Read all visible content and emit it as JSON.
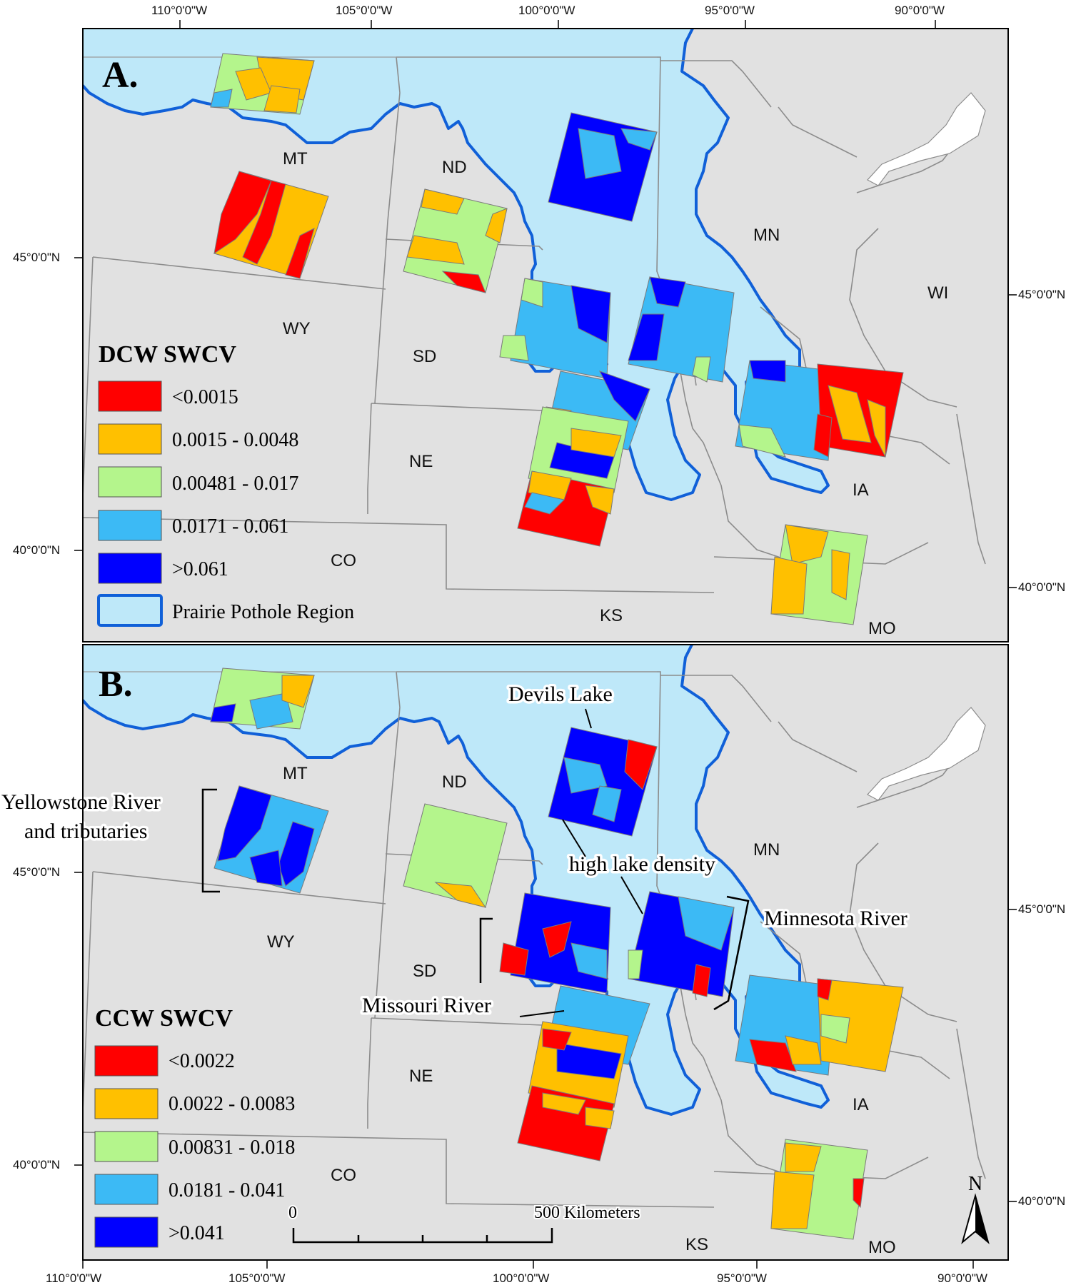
{
  "coords": {
    "top": [
      "110°0'0\"W",
      "105°0'0\"W",
      "100°0'0\"W",
      "95°0'0\"W",
      "90°0'0\"W"
    ],
    "bottom": [
      "110°0'0\"W",
      "105°0'0\"W",
      "100°0'0\"W",
      "95°0'0\"W",
      "90°0'0\"W"
    ],
    "left_a": [
      "45°0'0\"N",
      "40°0'0\"N"
    ],
    "right_a": [
      "45°0'0\"N",
      "40°0'0\"N"
    ],
    "left_b": [
      "45°0'0\"N",
      "40°0'0\"N"
    ],
    "right_b": [
      "45°0'0\"N",
      "40°0'0\"N"
    ]
  },
  "states": [
    "MT",
    "ND",
    "MN",
    "WI",
    "WY",
    "SD",
    "NE",
    "IA",
    "CO",
    "KS",
    "MO"
  ],
  "panel_a": {
    "letter": "A.",
    "legend_title": "DCW SWCV",
    "legend_items": [
      "<0.0015",
      "0.0015 - 0.0048",
      "0.00481 - 0.017",
      "0.0171 - 0.061",
      ">0.061",
      "Prairie Pothole Region"
    ]
  },
  "panel_b": {
    "letter": "B.",
    "legend_title": "CCW SWCV",
    "legend_items": [
      "<0.0022",
      "0.0022 - 0.0083",
      "0.00831 - 0.018",
      "0.0181 - 0.041",
      ">0.041"
    ],
    "annotations": {
      "devils_lake": "Devils Lake",
      "yellowstone_1": "Yellowstone River",
      "yellowstone_2": "and tributaries",
      "high_lake": "high lake density",
      "minnesota": "Minnesota River",
      "missouri": "Missouri River"
    },
    "scale_zero": "0",
    "scale_label": "500 Kilometers",
    "north": "N"
  },
  "colors": {
    "c1": "#ff0000",
    "c2": "#ffc000",
    "c3": "#b4f58c",
    "c4": "#3cbaf5",
    "c5": "#0000ff",
    "ppr_fill": "#bee8f9",
    "ppr_outline": "#1060d8",
    "land": "#e1e1e1"
  }
}
